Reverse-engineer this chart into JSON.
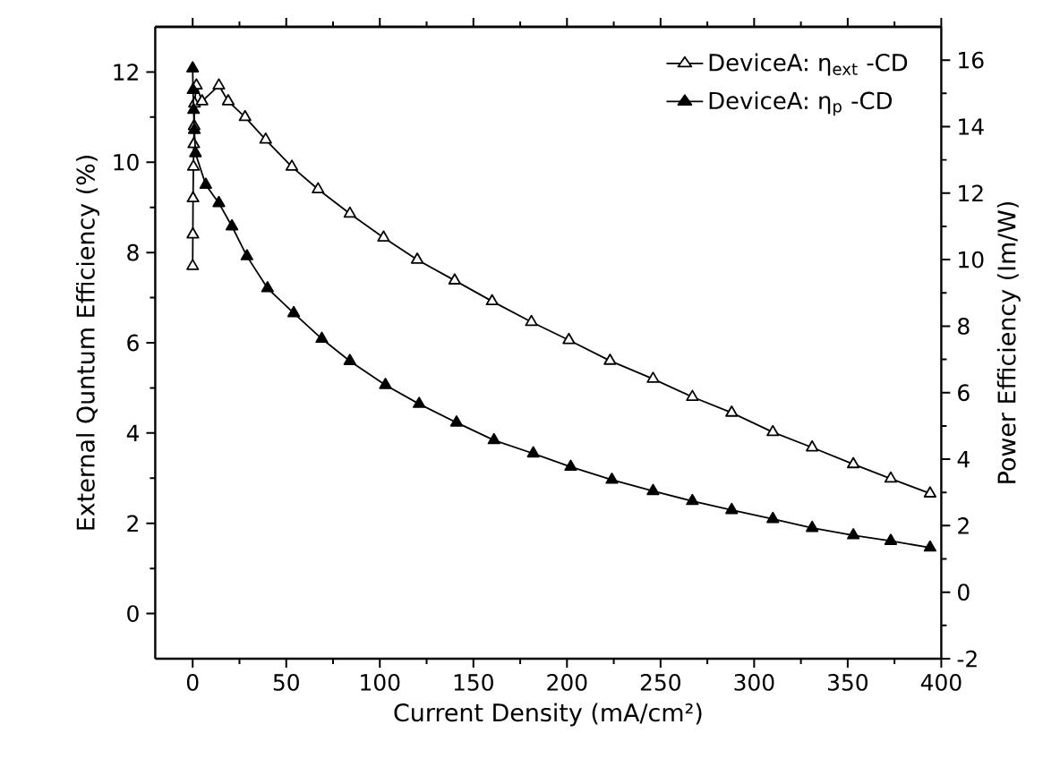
{
  "chart_data": {
    "type": "line",
    "xlabel": "Current Density (mA/cm²)",
    "ylabel": "External Quntum Efficiency (%)",
    "y2label": "Power Efficiency (Im/W)",
    "xlim": [
      -20,
      400
    ],
    "xticks": [
      0,
      50,
      100,
      150,
      200,
      250,
      300,
      350,
      400
    ],
    "ylim": [
      -1,
      13
    ],
    "yticks": [
      0,
      2,
      4,
      6,
      8,
      10,
      12
    ],
    "y2lim": [
      -2,
      17
    ],
    "y2ticks": [
      -2,
      0,
      2,
      4,
      6,
      8,
      10,
      12,
      14,
      16
    ],
    "legend": "top right",
    "marker": "triangle",
    "line_style": "solid",
    "grid": false,
    "series": [
      {
        "name": "DeviceA: η$_{ext}$ -CD",
        "color": "#000000",
        "x": [
          0,
          0.1,
          0.2,
          0.4,
          0.6,
          0.8,
          1,
          2,
          5,
          14,
          19,
          28,
          39,
          53,
          67,
          84,
          102,
          120,
          140,
          160,
          181,
          201,
          223,
          246,
          267,
          288,
          310,
          331,
          353,
          373,
          394
        ],
        "values": [
          7.7,
          8.4,
          9.2,
          9.9,
          10.4,
          10.8,
          11.3,
          11.7,
          11.35,
          11.7,
          11.35,
          11.0,
          10.5,
          9.9,
          9.4,
          8.86,
          8.33,
          7.84,
          7.38,
          6.92,
          6.46,
          6.06,
          5.6,
          5.2,
          4.8,
          4.45,
          4.02,
          3.68,
          3.31,
          2.99,
          2.66
        ]
      },
      {
        "name": "DeviceA: η$_{p}$ -CD",
        "color": "#000000",
        "axis": "y2",
        "x": [
          0,
          0.2,
          0.5,
          0.9,
          1.5,
          7,
          14,
          21,
          29,
          40,
          54,
          69,
          84,
          103,
          121,
          141,
          161,
          182,
          202,
          224,
          246,
          267,
          288,
          310,
          331,
          353,
          373,
          394
        ],
        "values": [
          15.75,
          15.1,
          14.5,
          13.9,
          13.2,
          12.25,
          11.7,
          11.0,
          10.1,
          9.14,
          8.39,
          7.62,
          6.95,
          6.23,
          5.66,
          5.1,
          4.57,
          4.17,
          3.77,
          3.38,
          3.04,
          2.74,
          2.47,
          2.2,
          1.93,
          1.71,
          1.54,
          1.34
        ]
      }
    ]
  }
}
